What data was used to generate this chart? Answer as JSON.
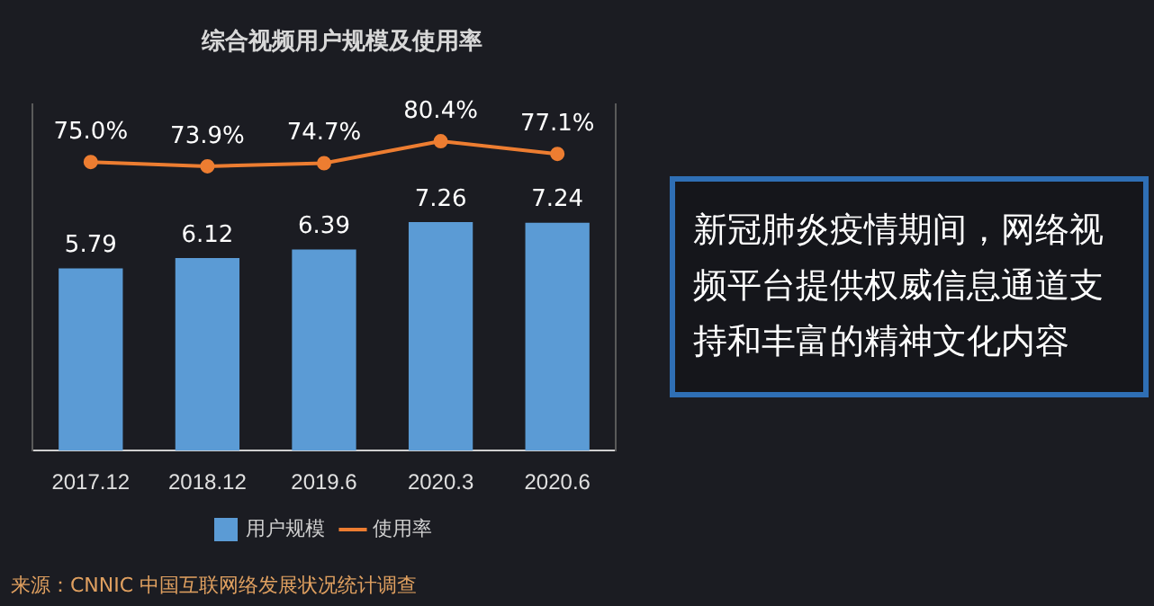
{
  "chart_data": {
    "type": "bar",
    "title": "综合视频用户规模及使用率",
    "categories": [
      "2017.12",
      "2018.12",
      "2019.6",
      "2020.3",
      "2020.6"
    ],
    "series": [
      {
        "name": "用户规模",
        "color": "#5b9bd5",
        "values": [
          5.79,
          6.12,
          6.39,
          7.26,
          7.24
        ],
        "value_labels": [
          "5.79",
          "6.12",
          "6.39",
          "7.26",
          "7.24"
        ]
      },
      {
        "name": "使用率",
        "type": "line",
        "axis": "y2",
        "color": "#ed7d31",
        "values": [
          75.0,
          73.9,
          74.7,
          80.4,
          77.1
        ],
        "value_labels": [
          "75.0%",
          "73.9%",
          "74.7%",
          "80.4%",
          "77.1%"
        ]
      }
    ],
    "ylim": [
      0,
      11
    ],
    "y2lim": [
      0,
      90
    ],
    "legend": "bottom",
    "grid": false,
    "tick_labels": "x",
    "marker": "circle",
    "line_style": "solid",
    "annotations": [
      "新冠肺炎疫情期间，网络视频平台提供权威信息通道支持和丰富的精神文化内容",
      "来源：CNNIC 中国互联网络发展状况统计调查"
    ]
  }
}
